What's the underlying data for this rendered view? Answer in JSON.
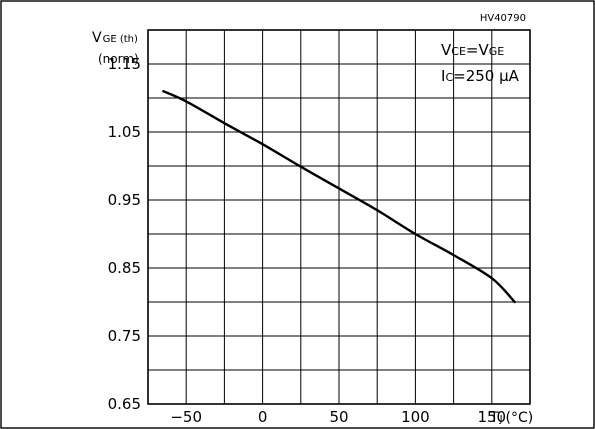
{
  "chart_data": {
    "type": "line",
    "figure_code": "HV40790",
    "ylabel": {
      "main": "V",
      "sub": "GE (th)",
      "unit": "(norm)"
    },
    "xlabel": {
      "main": "T",
      "sub": "J",
      "unit": "(°C)"
    },
    "conditions": [
      {
        "a": "V",
        "a_sub": "CE",
        "eq": "=",
        "b": "V",
        "b_sub": "GE"
      },
      {
        "a": "I",
        "a_sub": "C",
        "eq": "=",
        "b": "250 µA",
        "b_sub": ""
      }
    ],
    "x_ticks": [
      -50,
      0,
      50,
      100,
      150
    ],
    "y_ticks": [
      0.65,
      0.75,
      0.85,
      0.95,
      1.05,
      1.15
    ],
    "x_tick_labels": [
      "−50",
      "0",
      "50",
      "100",
      "150"
    ],
    "y_tick_labels": [
      "0.65",
      "0.75",
      "0.85",
      "0.95",
      "1.05",
      "1.15"
    ],
    "xlim": [
      -75,
      175
    ],
    "ylim": [
      0.65,
      1.2
    ],
    "grid": true,
    "series": [
      {
        "x": [
          -65,
          -50,
          -25,
          0,
          25,
          50,
          75,
          100,
          125,
          150,
          165
        ],
        "values": [
          1.11,
          1.095,
          1.063,
          1.032,
          0.999,
          0.967,
          0.935,
          0.9,
          0.869,
          0.835,
          0.8
        ]
      }
    ]
  }
}
